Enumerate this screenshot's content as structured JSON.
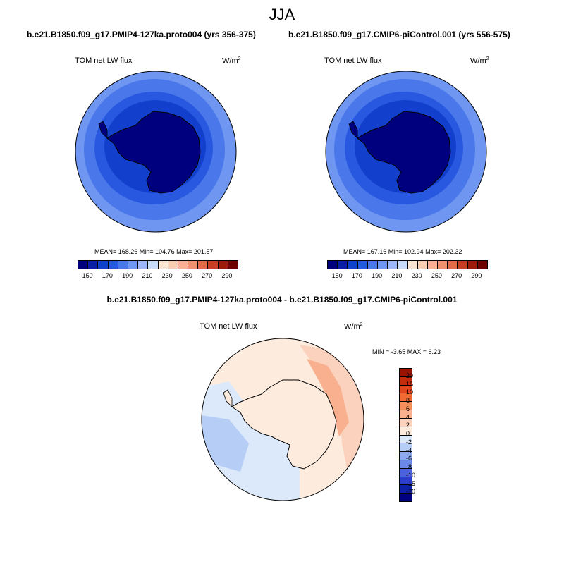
{
  "title": "JJA",
  "top_left": {
    "subtitle": "b.e21.B1850.f09_g17.PMIP4-127ka.proto004 (yrs 356-375)",
    "variable": "TOM net LW flux",
    "units": "W/m",
    "units_sup": "2",
    "stats": "MEAN= 168.26  Min= 104.76  Max= 201.57"
  },
  "top_right": {
    "subtitle": "b.e21.B1850.f09_g17.CMIP6-piControl.001 (yrs 556-575)",
    "variable": "TOM net LW flux",
    "units": "W/m",
    "units_sup": "2",
    "stats": "MEAN= 167.16  Min= 102.94  Max= 202.32"
  },
  "abs_colorbar": {
    "colors": [
      "#00007f",
      "#0a1ea8",
      "#1240cc",
      "#2858e0",
      "#4a78ea",
      "#6f96f0",
      "#9cb8f5",
      "#c8dbfb",
      "#f9e4d2",
      "#f9cfb4",
      "#f5b296",
      "#ef9072",
      "#e36a4c",
      "#c93c28",
      "#9e1a0f",
      "#6e0000"
    ],
    "ticks": [
      "150",
      "170",
      "190",
      "210",
      "230",
      "250",
      "270",
      "290"
    ]
  },
  "bottom": {
    "subtitle": "b.e21.B1850.f09_g17.PMIP4-127ka.proto004 - b.e21.B1850.f09_g17.CMIP6-piControl.001",
    "variable": "TOM net LW flux",
    "units": "W/m",
    "units_sup": "2",
    "stats": "MIN =  -3.65 MAX =   6.23"
  },
  "diff_colorbar": {
    "colors": [
      "#9c1200",
      "#c32d0b",
      "#e0461c",
      "#f26a33",
      "#f58d5d",
      "#f8b08e",
      "#fbd2bd",
      "#fdebdd",
      "#dbe9fb",
      "#b6cdf6",
      "#8ea9ef",
      "#6b87e7",
      "#4a63dc",
      "#2b3ec9",
      "#0f20a8",
      "#00007f"
    ],
    "ticks": [
      "20",
      "15",
      "10",
      "8",
      "6",
      "4",
      "2",
      "0",
      "-2",
      "-4",
      "-6",
      "-8",
      "-10",
      "-15",
      "-20"
    ]
  }
}
